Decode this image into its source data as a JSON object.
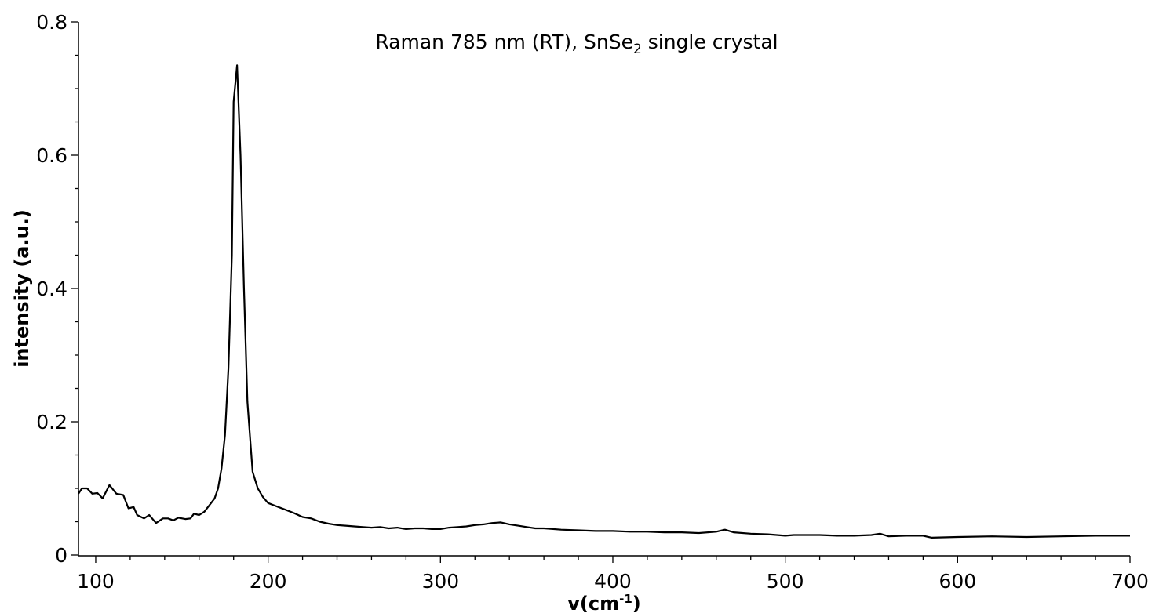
{
  "chart_data": {
    "type": "line",
    "title": "Raman 785 nm (RT), SnSe",
    "title_subscript": "2",
    "title_suffix": " single crystal",
    "xlabel": "v(cm",
    "xlabel_sup": "-1",
    "xlabel_close": ")",
    "ylabel": "intensity (a.u.)",
    "xlim": [
      90,
      700
    ],
    "ylim": [
      0,
      0.8
    ],
    "x_ticks": [
      "100",
      "200",
      "300",
      "400",
      "500",
      "600",
      "700"
    ],
    "y_ticks": [
      "0",
      "0.2",
      "0.4",
      "0.6",
      "0.8"
    ],
    "grid": false,
    "color": "#000000",
    "series": [
      {
        "name": "SnSe2",
        "x": [
          90,
          92,
          95,
          98,
          101,
          104,
          108,
          112,
          116,
          119,
          122,
          124,
          128,
          131,
          135,
          139,
          142,
          145,
          148,
          152,
          155,
          157,
          160,
          163,
          166,
          169,
          171,
          173,
          175,
          177,
          179,
          180,
          182,
          184,
          186,
          188,
          191,
          194,
          197,
          200,
          205,
          210,
          215,
          220,
          225,
          230,
          235,
          240,
          245,
          250,
          255,
          260,
          265,
          270,
          275,
          280,
          285,
          290,
          295,
          300,
          305,
          310,
          315,
          320,
          325,
          330,
          335,
          340,
          345,
          350,
          355,
          360,
          370,
          380,
          390,
          400,
          410,
          420,
          430,
          440,
          450,
          460,
          465,
          470,
          480,
          490,
          500,
          505,
          510,
          520,
          530,
          540,
          550,
          555,
          560,
          570,
          580,
          585,
          600,
          620,
          640,
          660,
          680,
          700
        ],
        "y": [
          0.092,
          0.1,
          0.1,
          0.092,
          0.093,
          0.085,
          0.105,
          0.092,
          0.09,
          0.07,
          0.072,
          0.06,
          0.055,
          0.06,
          0.048,
          0.055,
          0.055,
          0.052,
          0.056,
          0.054,
          0.055,
          0.062,
          0.06,
          0.065,
          0.075,
          0.085,
          0.1,
          0.13,
          0.18,
          0.28,
          0.45,
          0.68,
          0.735,
          0.6,
          0.4,
          0.23,
          0.125,
          0.1,
          0.087,
          0.078,
          0.073,
          0.068,
          0.063,
          0.057,
          0.055,
          0.05,
          0.047,
          0.045,
          0.044,
          0.043,
          0.042,
          0.041,
          0.042,
          0.04,
          0.041,
          0.039,
          0.04,
          0.04,
          0.039,
          0.039,
          0.041,
          0.042,
          0.043,
          0.045,
          0.046,
          0.048,
          0.049,
          0.046,
          0.044,
          0.042,
          0.04,
          0.04,
          0.038,
          0.037,
          0.036,
          0.036,
          0.035,
          0.035,
          0.034,
          0.034,
          0.033,
          0.035,
          0.038,
          0.034,
          0.032,
          0.031,
          0.029,
          0.03,
          0.03,
          0.03,
          0.029,
          0.029,
          0.03,
          0.032,
          0.028,
          0.029,
          0.029,
          0.026,
          0.027,
          0.028,
          0.027,
          0.028,
          0.029,
          0.029
        ]
      }
    ]
  }
}
